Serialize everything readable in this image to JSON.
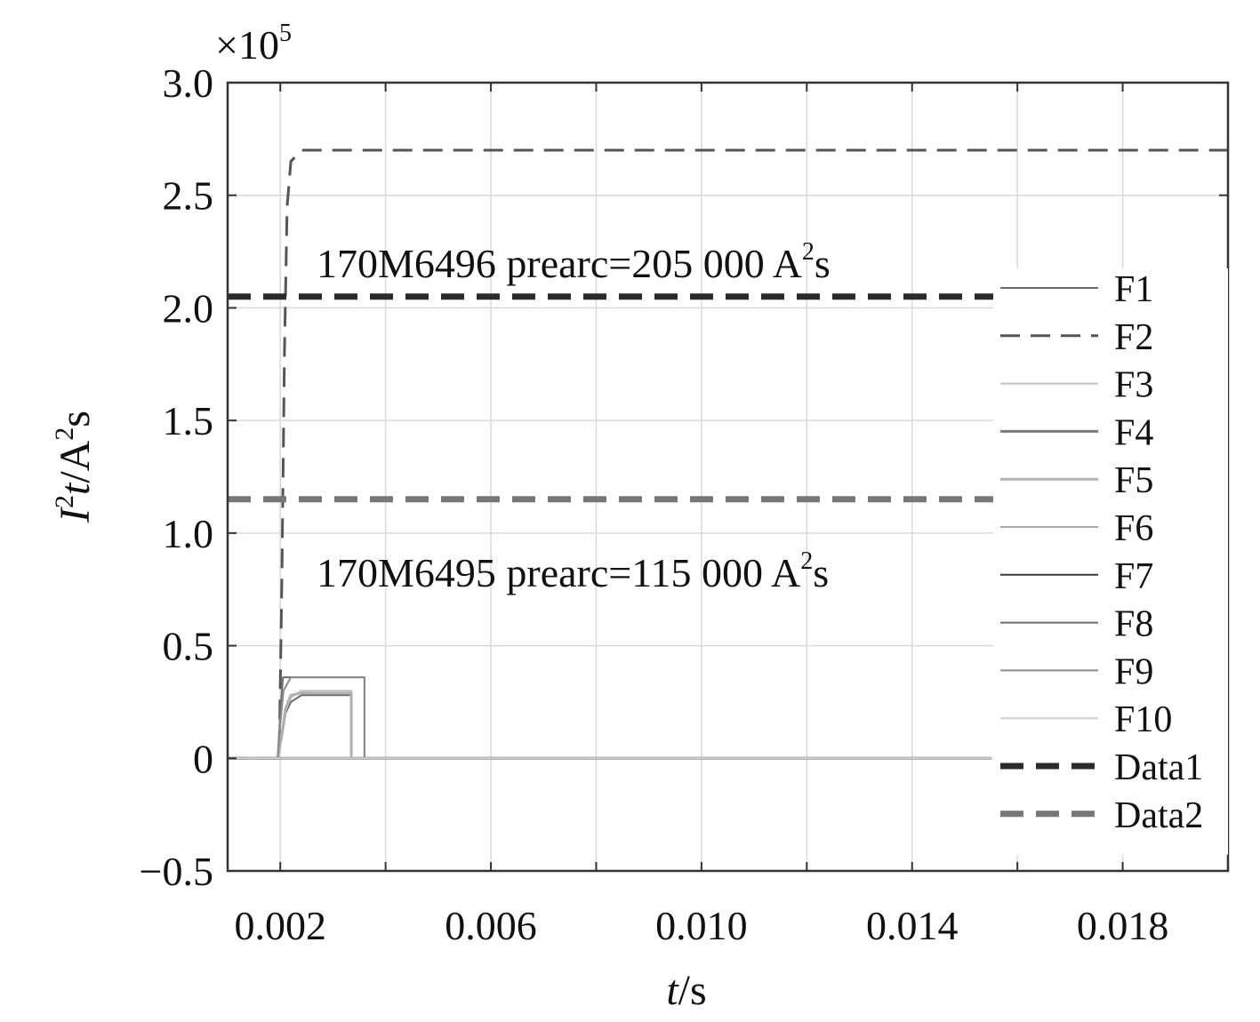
{
  "chart_data": {
    "type": "line",
    "multiplier_label": "×10",
    "multiplier_exponent": "5",
    "xlabel": {
      "var": "t",
      "unit": "/s"
    },
    "ylabel": {
      "base": "I",
      "sup": "2",
      "var": "t",
      "unit": "/A",
      "unit_sup": "2",
      "unit_tail": "s"
    },
    "xlim": [
      0.001,
      0.02
    ],
    "ylim": [
      -0.5,
      3.0
    ],
    "grid": true,
    "x_ticks": [
      {
        "value": 0.002,
        "label": "0.002"
      },
      {
        "value": 0.006,
        "label": "0.006"
      },
      {
        "value": 0.01,
        "label": "0.010"
      },
      {
        "value": 0.014,
        "label": "0.014"
      },
      {
        "value": 0.018,
        "label": "0.018"
      }
    ],
    "x_grid": [
      0.002,
      0.004,
      0.006,
      0.008,
      0.01,
      0.012,
      0.014,
      0.016,
      0.018
    ],
    "y_ticks": [
      {
        "value": 3.0,
        "label": "3.0"
      },
      {
        "value": 2.5,
        "label": "2.5"
      },
      {
        "value": 2.0,
        "label": "2.0"
      },
      {
        "value": 1.5,
        "label": "1.5"
      },
      {
        "value": 1.0,
        "label": "1.0"
      },
      {
        "value": 0.5,
        "label": "0.5"
      },
      {
        "value": 0,
        "label": "0"
      },
      {
        "value": -0.5,
        "label": "−0.5"
      }
    ],
    "annotations": [
      {
        "text": "170M6496 prearc=205 000 A",
        "sup": "2",
        "tail": "s"
      },
      {
        "text": "170M6495 prearc=115 000 A",
        "sup": "2",
        "tail": "s"
      }
    ],
    "legend_position": "right",
    "series": [
      {
        "name": "F1",
        "color": "#6a6a6a",
        "dash": "solid",
        "width": 2,
        "points": [
          [
            0.001,
            0
          ],
          [
            0.00195,
            0
          ],
          [
            0.00205,
            0.12
          ],
          [
            0.0021,
            0.2
          ],
          [
            0.0022,
            0.25
          ],
          [
            0.0024,
            0.28
          ],
          [
            0.00335,
            0.28
          ],
          [
            0.00335,
            0
          ],
          [
            0.0155,
            0
          ]
        ]
      },
      {
        "name": "F2",
        "color": "#555555",
        "dash": "dashed",
        "width": 3,
        "points": [
          [
            0.001,
            0
          ],
          [
            0.00198,
            0
          ],
          [
            0.00203,
            0.8
          ],
          [
            0.00208,
            1.8
          ],
          [
            0.00213,
            2.45
          ],
          [
            0.0022,
            2.65
          ],
          [
            0.0024,
            2.7
          ],
          [
            0.02,
            2.7
          ]
        ]
      },
      {
        "name": "F3",
        "color": "#c4c4c4",
        "dash": "solid",
        "width": 2,
        "points": [
          [
            0.001,
            0
          ],
          [
            0.00195,
            0
          ],
          [
            0.00205,
            0.12
          ],
          [
            0.0021,
            0.21
          ],
          [
            0.0022,
            0.27
          ],
          [
            0.0024,
            0.3
          ],
          [
            0.00335,
            0.3
          ],
          [
            0.00335,
            0
          ],
          [
            0.0155,
            0
          ]
        ]
      },
      {
        "name": "F4",
        "color": "#7a7a7a",
        "dash": "solid",
        "width": 3,
        "points": [
          [
            0.001,
            0
          ],
          [
            0.0155,
            0
          ]
        ]
      },
      {
        "name": "F5",
        "color": "#b0b0b0",
        "dash": "solid",
        "width": 3,
        "points": [
          [
            0.001,
            0
          ],
          [
            0.00195,
            0
          ],
          [
            0.00205,
            0.14
          ],
          [
            0.0021,
            0.22
          ],
          [
            0.0022,
            0.28
          ],
          [
            0.0024,
            0.29
          ],
          [
            0.00335,
            0.29
          ],
          [
            0.00335,
            0
          ],
          [
            0.0155,
            0
          ]
        ]
      },
      {
        "name": "F6",
        "color": "#a8a8a8",
        "dash": "solid",
        "width": 2,
        "points": [
          [
            0.001,
            0
          ],
          [
            0.0155,
            0
          ]
        ]
      },
      {
        "name": "F7",
        "color": "#3a3a3a",
        "dash": "solid",
        "width": 2,
        "points": [
          [
            0.001,
            0
          ],
          [
            0.0155,
            0
          ]
        ]
      },
      {
        "name": "F8",
        "color": "#6e6e6e",
        "dash": "solid",
        "width": 2,
        "points": [
          [
            0.001,
            0
          ],
          [
            0.00195,
            0
          ],
          [
            0.002,
            0.2
          ],
          [
            0.00205,
            0.36
          ],
          [
            0.0036,
            0.36
          ],
          [
            0.0036,
            0
          ],
          [
            0.0155,
            0
          ]
        ]
      },
      {
        "name": "F9",
        "color": "#8a8a8a",
        "dash": "solid",
        "width": 2,
        "points": [
          [
            0.001,
            0
          ],
          [
            0.00195,
            0
          ],
          [
            0.002,
            0.15
          ],
          [
            0.00206,
            0.3
          ],
          [
            0.0022,
            0.36
          ],
          [
            0.0036,
            0.36
          ],
          [
            0.0036,
            0
          ],
          [
            0.0155,
            0
          ]
        ]
      },
      {
        "name": "F10",
        "color": "#d0d0d0",
        "dash": "solid",
        "width": 2,
        "points": [
          [
            0.001,
            0
          ],
          [
            0.0155,
            0
          ]
        ]
      },
      {
        "name": "Data1",
        "color": "#2b2b2b",
        "dash": "thickdash",
        "width": 7,
        "points": [
          [
            0.001,
            2.05
          ],
          [
            0.02,
            2.05
          ]
        ]
      },
      {
        "name": "Data2",
        "color": "#777777",
        "dash": "thickdash",
        "width": 7,
        "points": [
          [
            0.001,
            1.15
          ],
          [
            0.02,
            1.15
          ]
        ]
      }
    ]
  }
}
